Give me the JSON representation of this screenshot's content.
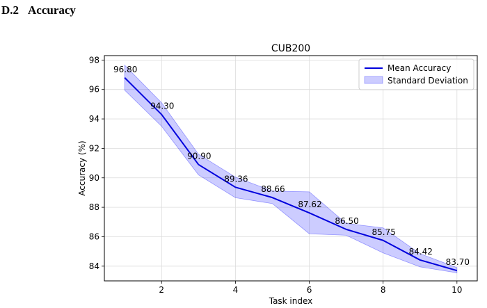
{
  "section": {
    "number": "D.2",
    "title": "Accuracy"
  },
  "chart_data": {
    "type": "line",
    "title": "CUB200",
    "xlabel": "Task index",
    "ylabel": "Accuracy (%)",
    "x": [
      1,
      2,
      3,
      4,
      5,
      6,
      7,
      8,
      9,
      10
    ],
    "xticks": [
      2,
      4,
      6,
      8,
      10
    ],
    "yticks": [
      84,
      86,
      88,
      90,
      92,
      94,
      96,
      98
    ],
    "xlim": [
      0.45,
      10.55
    ],
    "ylim": [
      83.0,
      98.3
    ],
    "grid": true,
    "legend_position": "top-right",
    "series": [
      {
        "name": "Mean Accuracy",
        "type": "line",
        "color": "#0000dd",
        "values": [
          96.8,
          94.3,
          90.9,
          89.36,
          88.66,
          87.62,
          86.5,
          85.75,
          84.42,
          83.7
        ],
        "data_labels": [
          "96.80",
          "94.30",
          "90.90",
          "89.36",
          "88.66",
          "87.62",
          "86.50",
          "85.75",
          "84.42",
          "83.70"
        ]
      },
      {
        "name": "Standard Deviation",
        "type": "band",
        "color": "#0000ff",
        "opacity": 0.2,
        "upper": [
          97.65,
          95.1,
          91.6,
          90.05,
          89.1,
          89.05,
          86.9,
          86.6,
          84.85,
          83.9
        ],
        "lower": [
          95.95,
          93.5,
          90.2,
          88.65,
          88.25,
          86.2,
          86.1,
          84.9,
          83.95,
          83.55
        ]
      }
    ]
  }
}
